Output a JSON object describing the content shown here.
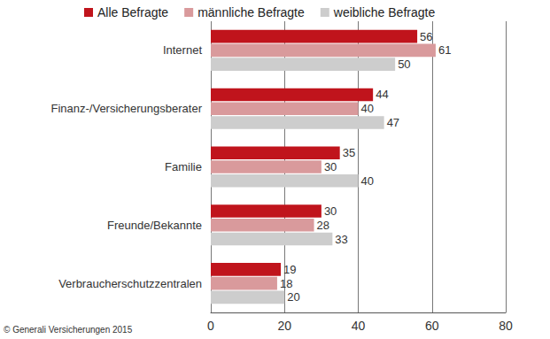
{
  "chart_data": {
    "type": "bar",
    "orientation": "horizontal",
    "categories": [
      "Internet",
      "Finanz-/Versicherungsberater",
      "Familie",
      "Freunde/Bekannte",
      "Verbraucherschutzzentralen"
    ],
    "series": [
      {
        "name": "Alle Befragte",
        "color": "#c0141c",
        "values": [
          56,
          44,
          35,
          30,
          19
        ]
      },
      {
        "name": "männliche Befragte",
        "color": "#d99a9c",
        "values": [
          61,
          40,
          30,
          28,
          18
        ]
      },
      {
        "name": "weibliche Befragte",
        "color": "#cdcdcd",
        "values": [
          50,
          47,
          40,
          33,
          20
        ]
      }
    ],
    "xlim": [
      0,
      80
    ],
    "xticks": [
      0,
      20,
      40,
      60,
      80
    ],
    "grid": true,
    "legend": "top",
    "data_labels": true,
    "annotations": [
      "© Generali Versicherungen 2015"
    ]
  }
}
